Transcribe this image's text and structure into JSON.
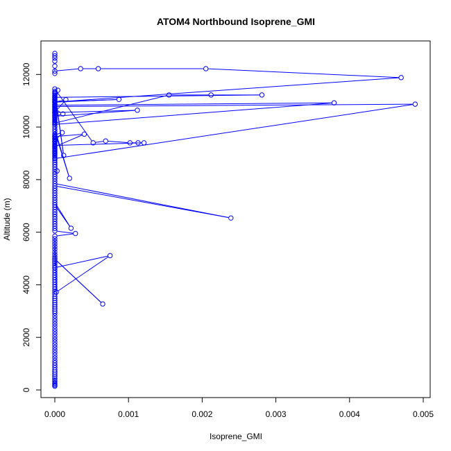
{
  "chart_data": {
    "type": "line",
    "title": "ATOM4 Northbound Isoprene_GMI",
    "xlabel": "Isoprene_GMI",
    "ylabel": "Altitude (m)",
    "xlim": [
      0.0,
      0.005
    ],
    "ylim": [
      0,
      12800
    ],
    "x_ticks": [
      0.0,
      0.001,
      0.002,
      0.003,
      0.004,
      0.005
    ],
    "x_tick_labels": [
      "0.000",
      "0.001",
      "0.002",
      "0.003",
      "0.004",
      "0.005"
    ],
    "y_ticks": [
      0,
      2000,
      4000,
      6000,
      8000,
      10000,
      12000
    ],
    "y_tick_labels": [
      "0",
      "2000",
      "4000",
      "6000",
      "8000",
      "10000",
      "12000"
    ],
    "grid": false,
    "legend": "none",
    "series_color": "#0000ff",
    "series": [
      {
        "x": [
          0.0,
          0.0,
          0.0,
          0.0,
          0.0,
          0.0,
          0.0,
          0.0,
          0.0,
          0.0,
          0.0,
          0.0,
          0.0,
          0.0,
          0.0,
          0.0,
          0.0,
          0.0,
          0.0,
          0.0,
          0.0,
          0.0,
          0.0,
          0.0,
          0.0,
          0.0,
          0.0,
          0.0,
          0.0,
          0.0,
          0.0,
          0.0,
          0.0,
          0.0,
          0.0,
          0.0,
          0.0,
          0.0,
          0.0,
          0.0,
          0.0,
          0.0,
          0.0,
          0.0,
          0.0,
          0.0,
          0.0,
          0.0,
          0.0,
          0.0,
          0.0,
          0.0,
          0.0,
          0.0,
          0.0,
          0.0,
          0.0,
          0.00065,
          0.0,
          0.0,
          0.0,
          0.0,
          0.0,
          0.0,
          0.0,
          0.0,
          0.0,
          2e-05,
          0.00075,
          0.0,
          0.0,
          0.00028,
          0.0,
          0.0,
          0.0,
          0.0,
          0.0,
          0.0,
          0.0,
          0.0,
          0.0,
          0.0,
          0.0,
          0.0,
          0.00022,
          0.0,
          0.0,
          0.0,
          0.0,
          0.0,
          0.0,
          0.0,
          0.0,
          0.00239,
          0.0,
          0.0,
          0.0,
          0.0,
          0.0,
          0.0,
          0.0,
          0.0,
          0.0,
          0.0,
          0.0,
          0.0,
          0.0,
          0.0,
          0.0,
          0.0,
          0.0,
          0.0,
          0.0,
          0.0,
          0.0,
          0.0,
          0.0,
          0.0002,
          0.0,
          0.0,
          0.0,
          0.0,
          0.0,
          0.0,
          0.0,
          0.0,
          0.0,
          3e-05,
          0.0,
          0.0,
          0.0,
          0.0,
          0.0,
          0.0,
          0.0,
          0.00012,
          0.0,
          0.0,
          0.00052,
          0.00069,
          0.00102,
          0.00113,
          0.00121,
          0.0,
          0.0,
          0.0004,
          0.0,
          0.0,
          0.0,
          0.0001,
          0.0,
          0.0,
          0.0,
          0.0,
          0.0,
          0.0,
          0.0,
          0.0,
          0.0,
          0.0,
          0.0,
          0.00489,
          0.0,
          0.0,
          0.00011,
          0.0,
          0.00112,
          0.0,
          0.0,
          0.0,
          0.0,
          0.0,
          0.0,
          0.00379,
          0.0,
          0.0,
          0.0,
          0.0,
          0.00015,
          0.0,
          0.00087,
          0.0,
          0.0,
          0.0,
          0.0,
          0.0,
          0.0,
          0.0,
          0.0,
          0.0,
          0.0,
          0.00155,
          0.00212,
          0.00281,
          0.0,
          0.0,
          0.0,
          0.0,
          0.0,
          0.0,
          4e-05,
          0.0,
          0.0,
          0.0,
          0.0,
          0.0,
          0.0047,
          0.00205,
          0.00059,
          0.00035,
          0.0,
          0.0,
          0.0,
          0.0,
          0.0,
          0.0,
          0.0
        ],
        "y": [
          140,
          180,
          220,
          260,
          320,
          380,
          450,
          520,
          600,
          680,
          760,
          850,
          940,
          1030,
          1120,
          1220,
          1320,
          1420,
          1520,
          1620,
          1720,
          1820,
          1920,
          2020,
          2120,
          2220,
          2320,
          2420,
          2520,
          2620,
          2720,
          2820,
          2920,
          3000,
          3080,
          3160,
          3240,
          3320,
          3400,
          3480,
          3560,
          3650,
          3740,
          3830,
          3920,
          4010,
          4100,
          4190,
          4280,
          4370,
          4460,
          4550,
          4640,
          4730,
          4820,
          4900,
          4980,
          3270,
          4980,
          5060,
          5150,
          5250,
          5350,
          5450,
          5550,
          5650,
          5750,
          3720,
          5110,
          4650,
          5850,
          5950,
          6050,
          6140,
          6230,
          6320,
          6410,
          6500,
          6590,
          6680,
          6770,
          6860,
          6950,
          7040,
          6150,
          7130,
          7220,
          7310,
          7400,
          7490,
          7580,
          7670,
          7760,
          6540,
          7850,
          7940,
          8030,
          8120,
          8210,
          8300,
          8390,
          8480,
          8570,
          8660,
          8750,
          8840,
          8930,
          9020,
          9110,
          9200,
          9290,
          9380,
          9470,
          9560,
          9650,
          9740,
          9830,
          8050,
          9920,
          10010,
          10100,
          10190,
          10280,
          10370,
          10460,
          10550,
          10640,
          8330,
          10730,
          10820,
          10910,
          11000,
          11090,
          11180,
          11270,
          8920,
          11360,
          11450,
          9400,
          9470,
          9400,
          9400,
          9400,
          9300,
          9250,
          9730,
          9640,
          9550,
          9460,
          9790,
          9700,
          9610,
          9520,
          9430,
          9340,
          9250,
          9160,
          9070,
          8980,
          8890,
          8800,
          10870,
          10780,
          10690,
          10500,
          10410,
          10640,
          10550,
          10460,
          10370,
          10280,
          10190,
          10100,
          10920,
          10830,
          10740,
          10650,
          10560,
          11040,
          10950,
          11050,
          10960,
          10870,
          10780,
          10690,
          10600,
          10510,
          10420,
          10330,
          10240,
          10150,
          11220,
          11220,
          11220,
          11130,
          11040,
          10950,
          10860,
          10770,
          10680,
          11400,
          11310,
          11220,
          11130,
          11040,
          10950,
          11880,
          12220,
          12220,
          12220,
          12130,
          12040,
          12320,
          12510,
          12620,
          12710,
          12800
        ]
      }
    ]
  }
}
